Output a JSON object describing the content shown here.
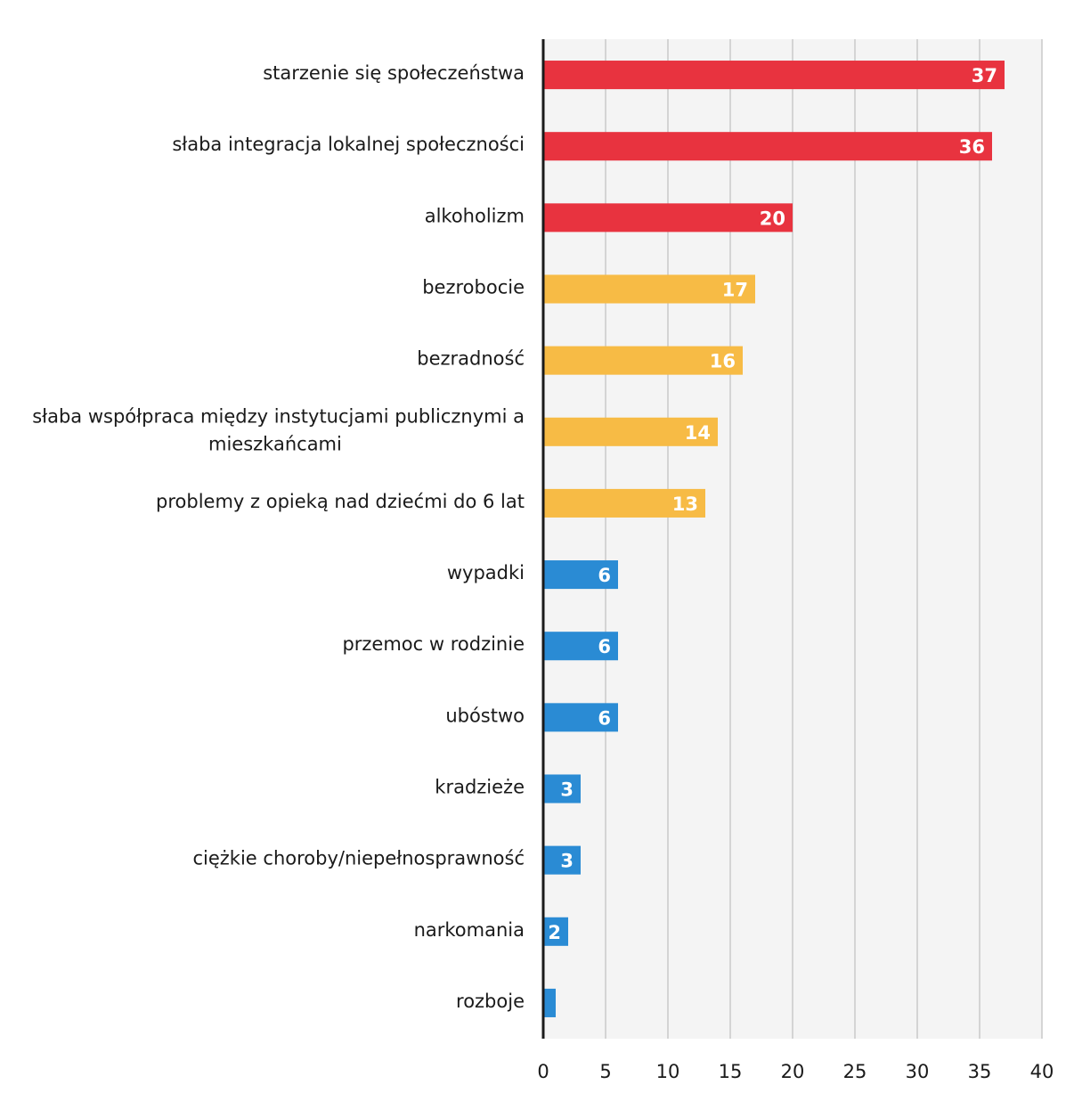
{
  "chart_data": {
    "type": "bar",
    "orientation": "horizontal",
    "categories": [
      [
        "starzenie się społeczeństwa"
      ],
      [
        "słaba integracja lokalnej społeczności"
      ],
      [
        "alkoholizm"
      ],
      [
        "bezrobocie"
      ],
      [
        "bezradność"
      ],
      [
        "słaba współpraca między instytucjami publicznymi a",
        "mieszkańcami"
      ],
      [
        "problemy z opieką nad dziećmi do 6 lat"
      ],
      [
        "wypadki"
      ],
      [
        "przemoc w rodzinie"
      ],
      [
        "ubóstwo"
      ],
      [
        "kradzieże"
      ],
      [
        "ciężkie choroby/niepełnosprawność"
      ],
      [
        "narkomania"
      ],
      [
        "rozboje"
      ]
    ],
    "values": [
      37,
      36,
      20,
      17,
      16,
      14,
      13,
      6,
      6,
      6,
      3,
      3,
      2,
      1
    ],
    "data_labels": [
      "37",
      "36",
      "20",
      "17",
      "16",
      "14",
      "13",
      "6",
      "6",
      "6",
      "3",
      "3",
      "2",
      ""
    ],
    "bar_colors": [
      "#e8333f",
      "#e8333f",
      "#e8333f",
      "#f7bb45",
      "#f7bb45",
      "#f7bb45",
      "#f7bb45",
      "#2a8bd4",
      "#2a8bd4",
      "#2a8bd4",
      "#2a8bd4",
      "#2a8bd4",
      "#2a8bd4",
      "#2a8bd4"
    ],
    "xlim": [
      0,
      40
    ],
    "xticks": [
      0,
      5,
      10,
      15,
      20,
      25,
      30,
      35,
      40
    ],
    "grid": "vertical",
    "title": "",
    "xlabel": "",
    "ylabel": ""
  }
}
